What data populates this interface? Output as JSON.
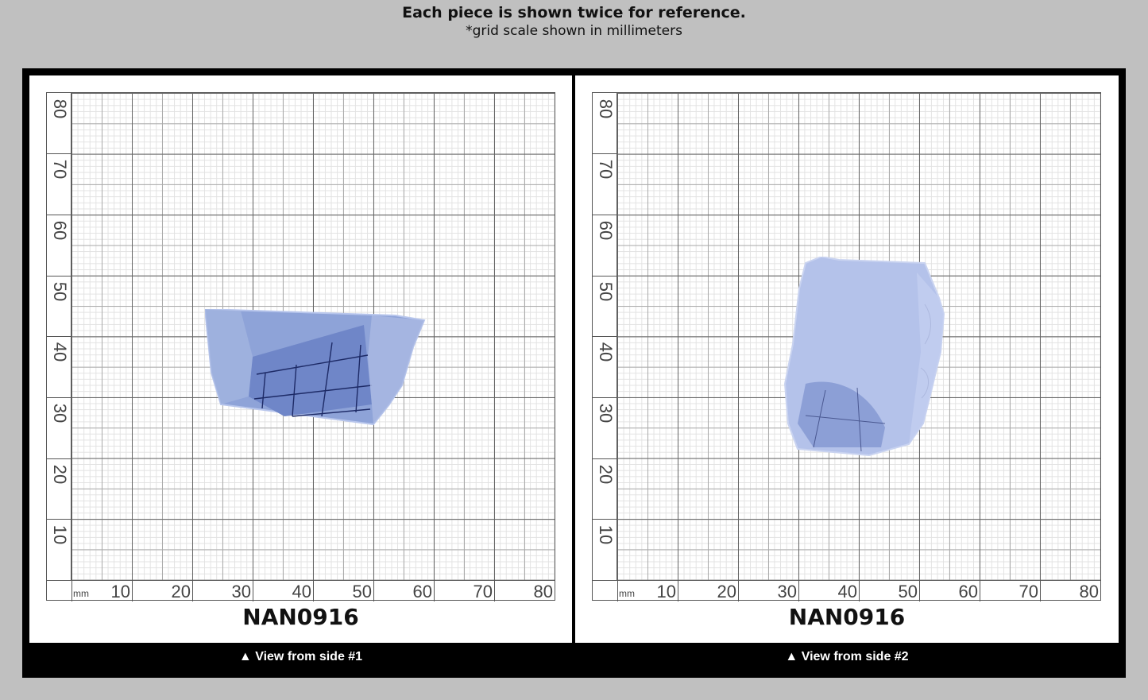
{
  "header": {
    "title": "Each piece is shown twice for reference.",
    "subtitle": "*grid scale shown in millimeters"
  },
  "grid": {
    "unit_label": "mm",
    "x_ticks": [
      "10",
      "20",
      "30",
      "40",
      "50",
      "60",
      "70",
      "80"
    ],
    "y_ticks": [
      "80",
      "70",
      "60",
      "50",
      "40",
      "30",
      "20",
      "10"
    ]
  },
  "views": [
    {
      "item_code": "NAN0916",
      "caption": "▲ View from side #1"
    },
    {
      "item_code": "NAN0916",
      "caption": "▲ View from side #2"
    }
  ],
  "colors": {
    "background": "#c0c0c0",
    "frame": "#000000",
    "stone_blue": "#8ea3d8",
    "stone_pale": "#b7c4ea"
  }
}
